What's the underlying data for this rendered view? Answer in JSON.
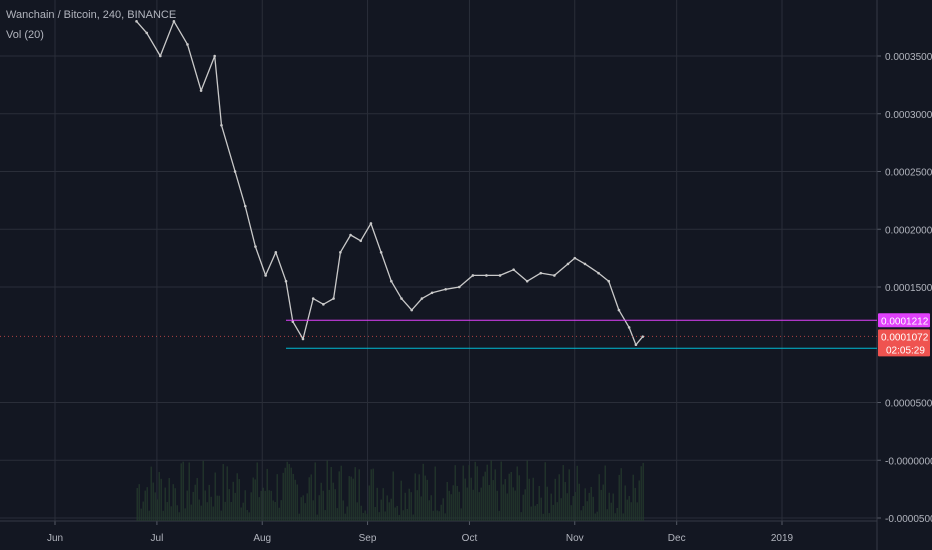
{
  "legend": {
    "symbol": "Wanchain / Bitcoin, 240, BINANCE",
    "volume_indicator": "Vol (20)"
  },
  "colors": {
    "background": "#131722",
    "grid": "#2a2e39",
    "axis_text": "#b2b5be",
    "candle": "#c9c9c9",
    "volume": "#243a2e",
    "resistance_line": "#e040fb",
    "support_line": "#00bcd4",
    "last_price_badge": "#ef5350"
  },
  "chart_data": {
    "type": "line",
    "title": "Wanchain / Bitcoin, 240, BINANCE",
    "xlabel": "",
    "ylabel": "",
    "x_tick_labels": [
      "Jun",
      "Jul",
      "Aug",
      "Sep",
      "Oct",
      "Nov",
      "Dec",
      "2019"
    ],
    "x_tick_dates": [
      "2018-06-01",
      "2018-07-01",
      "2018-08-01",
      "2018-09-01",
      "2018-10-01",
      "2018-11-01",
      "2018-12-01",
      "2019-01-01"
    ],
    "y_tick_labels": [
      "0.0003500",
      "0.0003000",
      "0.0002500",
      "0.0002000",
      "0.0001500",
      "0.0000500",
      "-0.0000000",
      "-0.0000500"
    ],
    "ylim": [
      -5e-05,
      0.00039
    ],
    "grid": true,
    "series": [
      {
        "x": [
          "2018-06-25",
          "2018-06-28",
          "2018-07-02",
          "2018-07-06",
          "2018-07-10",
          "2018-07-14",
          "2018-07-18",
          "2018-07-20",
          "2018-07-24",
          "2018-07-27",
          "2018-07-30",
          "2018-08-02",
          "2018-08-05",
          "2018-08-08",
          "2018-08-10",
          "2018-08-13",
          "2018-08-16",
          "2018-08-19",
          "2018-08-22",
          "2018-08-24",
          "2018-08-27",
          "2018-08-30",
          "2018-09-02",
          "2018-09-05",
          "2018-09-08",
          "2018-09-11",
          "2018-09-14",
          "2018-09-17",
          "2018-09-20",
          "2018-09-24",
          "2018-09-28",
          "2018-10-02",
          "2018-10-06",
          "2018-10-10",
          "2018-10-14",
          "2018-10-18",
          "2018-10-22",
          "2018-10-26",
          "2018-10-30",
          "2018-11-01",
          "2018-11-04",
          "2018-11-08",
          "2018-11-11",
          "2018-11-14",
          "2018-11-17",
          "2018-11-19",
          "2018-11-21"
        ],
        "values": [
          0.00038,
          0.00037,
          0.00035,
          0.00038,
          0.00036,
          0.00032,
          0.00035,
          0.00029,
          0.00025,
          0.00022,
          0.000185,
          0.00016,
          0.00018,
          0.000155,
          0.00012,
          0.000105,
          0.00014,
          0.000135,
          0.00014,
          0.00018,
          0.000195,
          0.00019,
          0.000205,
          0.00018,
          0.000155,
          0.00014,
          0.00013,
          0.00014,
          0.000145,
          0.000148,
          0.00015,
          0.00016,
          0.00016,
          0.00016,
          0.000165,
          0.000155,
          0.000162,
          0.00016,
          0.00017,
          0.000175,
          0.00017,
          0.000162,
          0.000155,
          0.00013,
          0.000115,
          0.0001,
          0.000107
        ]
      }
    ],
    "volume_bars": true,
    "horizontal_lines": [
      {
        "price": 0.0001212,
        "label": "0.0001212",
        "start": "2018-08-08"
      },
      {
        "price": 9.7e-05,
        "label": "0.0000970",
        "start": "2018-08-08"
      }
    ],
    "last_price": {
      "value": 0.0001072,
      "label": "0.0001072",
      "countdown": "02:05:29"
    }
  }
}
